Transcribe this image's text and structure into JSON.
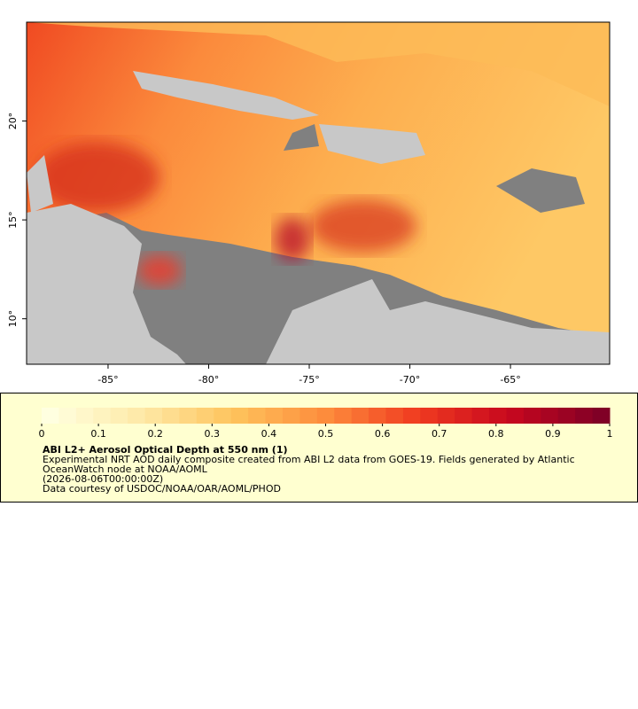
{
  "map": {
    "lon_range": [
      -89.05,
      -60.07
    ],
    "lat_range": [
      7.7,
      25.0
    ],
    "lon_ticks": [
      {
        "value": -85,
        "label": "-85°"
      },
      {
        "value": -80,
        "label": "-80°"
      },
      {
        "value": -75,
        "label": "-75°"
      },
      {
        "value": -70,
        "label": "-70°"
      },
      {
        "value": -65,
        "label": "-65°"
      }
    ],
    "lat_ticks": [
      {
        "value": 10,
        "label": "10°"
      },
      {
        "value": 15,
        "label": "15°"
      },
      {
        "value": 20,
        "label": "20°"
      }
    ]
  },
  "legend": {
    "range": [
      0,
      1
    ],
    "ticks": [
      0,
      0.1,
      0.2,
      0.3,
      0.4,
      0.5,
      0.6,
      0.7,
      0.8,
      0.9,
      1
    ],
    "colormap": [
      "#ffffe0",
      "#fee9a6",
      "#fec35c",
      "#fd8c3c",
      "#f03b20",
      "#c7071e",
      "#800026"
    ],
    "title": "ABI L2+ Aerosol Optical Depth at 550 nm (1)",
    "lines": [
      "Experimental NRT AOD daily composite created from ABI L2 data from GOES-19. Fields generated by Atlantic",
      "OceanWatch node at NOAA/AOML",
      "(2026-08-06T00:00:00Z)",
      "Data courtesy of USDOC/NOAA/OAR/AOML/PHOD"
    ]
  }
}
